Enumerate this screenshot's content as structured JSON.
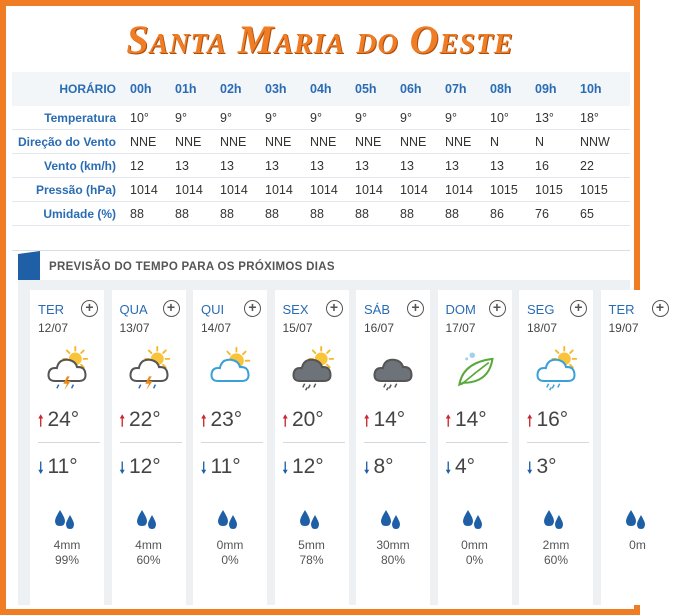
{
  "title": "Santa Maria do Oeste",
  "hourly": {
    "header_label": "HORÁRIO",
    "hours": [
      "00h",
      "01h",
      "02h",
      "03h",
      "04h",
      "05h",
      "06h",
      "07h",
      "08h",
      "09h",
      "10h"
    ],
    "rows": [
      {
        "label": "Temperatura",
        "values": [
          "10°",
          "9°",
          "9°",
          "9°",
          "9°",
          "9°",
          "9°",
          "9°",
          "10°",
          "13°",
          "18°"
        ]
      },
      {
        "label": "Direção do Vento",
        "values": [
          "NNE",
          "NNE",
          "NNE",
          "NNE",
          "NNE",
          "NNE",
          "NNE",
          "NNE",
          "N",
          "N",
          "NNW"
        ]
      },
      {
        "label": "Vento (km/h)",
        "values": [
          "12",
          "13",
          "13",
          "13",
          "13",
          "13",
          "13",
          "13",
          "13",
          "16",
          "22"
        ]
      },
      {
        "label": "Pressão (hPa)",
        "values": [
          "1014",
          "1014",
          "1014",
          "1014",
          "1014",
          "1014",
          "1014",
          "1014",
          "1015",
          "1015",
          "1015"
        ]
      },
      {
        "label": "Umidade (%)",
        "values": [
          "88",
          "88",
          "88",
          "88",
          "88",
          "88",
          "88",
          "88",
          "86",
          "76",
          "65"
        ]
      }
    ]
  },
  "forecast": {
    "title": "PREVISÃO DO TEMPO PARA OS PRÓXIMOS DIAS",
    "days": [
      {
        "name": "TER",
        "date": "12/07",
        "icon": "sun-cloud-storm-icon",
        "max": "24°",
        "min": "11°",
        "rain": "4mm",
        "prob": "99%"
      },
      {
        "name": "QUA",
        "date": "13/07",
        "icon": "sun-cloud-storm-icon",
        "max": "22°",
        "min": "12°",
        "rain": "4mm",
        "prob": "60%"
      },
      {
        "name": "QUI",
        "date": "14/07",
        "icon": "sun-cloud-icon",
        "max": "23°",
        "min": "11°",
        "rain": "0mm",
        "prob": "0%"
      },
      {
        "name": "SEX",
        "date": "15/07",
        "icon": "sun-dark-cloud-rain-icon",
        "max": "20°",
        "min": "12°",
        "rain": "5mm",
        "prob": "78%"
      },
      {
        "name": "SÁB",
        "date": "16/07",
        "icon": "dark-cloud-rain-icon",
        "max": "14°",
        "min": "8°",
        "rain": "30mm",
        "prob": "80%"
      },
      {
        "name": "DOM",
        "date": "17/07",
        "icon": "leaf-frost-icon",
        "max": "14°",
        "min": "4°",
        "rain": "0mm",
        "prob": "0%"
      },
      {
        "name": "SEG",
        "date": "18/07",
        "icon": "sun-cloud-rain-icon",
        "max": "16°",
        "min": "3°",
        "rain": "2mm",
        "prob": "60%"
      },
      {
        "name": "TER",
        "date": "19/07",
        "icon": "",
        "max": "",
        "min": "",
        "rain": "0m",
        "prob": ""
      }
    ]
  },
  "colors": {
    "frame": "#f07c24",
    "label_blue": "#2a6cb3",
    "max_arrow": "#c8282e",
    "min_arrow": "#1f5fa6",
    "drop": "#1f5fa6"
  }
}
